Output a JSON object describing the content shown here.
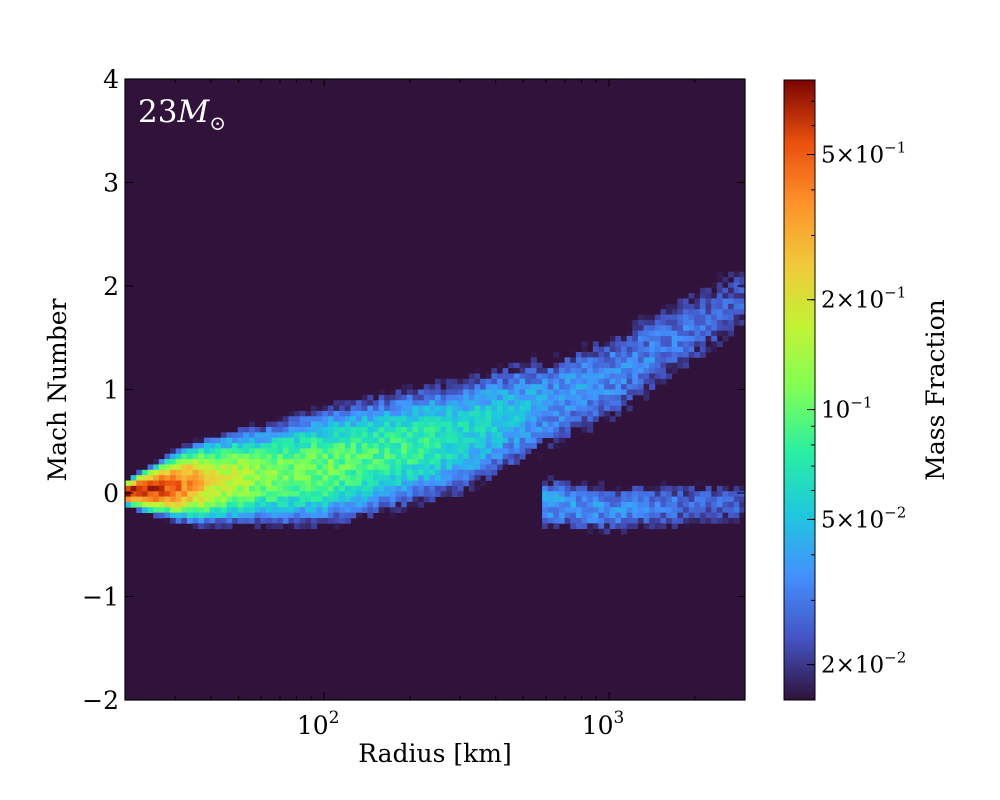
{
  "chart_data": {
    "type": "heatmap",
    "annotation": {
      "number": "23",
      "symbol": "M",
      "subscript": "⊙"
    },
    "xlabel": "Radius [km]",
    "ylabel": "Mach Number",
    "xscale": "log",
    "xlim": [
      20,
      3000
    ],
    "ylim": [
      -2,
      4
    ],
    "x_ticks": [
      {
        "value": 100,
        "base": "10",
        "exp": "2"
      },
      {
        "value": 1000,
        "base": "10",
        "exp": "3"
      }
    ],
    "y_ticks": [
      {
        "value": -2,
        "label": "−2"
      },
      {
        "value": -1,
        "label": "−1"
      },
      {
        "value": 0,
        "label": "0"
      },
      {
        "value": 1,
        "label": "1"
      },
      {
        "value": 2,
        "label": "2"
      },
      {
        "value": 3,
        "label": "3"
      },
      {
        "value": 4,
        "label": "4"
      }
    ],
    "colorbar": {
      "label": "Mass Fraction",
      "scale": "log",
      "range": [
        0.016,
        0.8
      ],
      "colormap": "turbo",
      "ticks": [
        {
          "value": 0.02,
          "mant": "2",
          "exp": "−2"
        },
        {
          "value": 0.05,
          "mant": "5",
          "exp": "−2"
        },
        {
          "value": 0.1,
          "mant": "",
          "exp": "−1"
        },
        {
          "value": 0.2,
          "mant": "2",
          "exp": "−1"
        },
        {
          "value": 0.5,
          "mant": "5",
          "exp": "−1"
        }
      ]
    },
    "background_color": "#30123b",
    "distribution": {
      "ridges": [
        {
          "branch": "upper",
          "points": [
            [
              20,
              0.0
            ],
            [
              50,
              0.15
            ],
            [
              100,
              0.25
            ],
            [
              300,
              0.55
            ],
            [
              1000,
              1.1
            ],
            [
              3000,
              1.9
            ]
          ]
        },
        {
          "branch": "lower",
          "points": [
            [
              600,
              -0.1
            ],
            [
              1000,
              -0.15
            ],
            [
              3000,
              -0.1
            ]
          ]
        }
      ],
      "half_width": [
        [
          20,
          0.08
        ],
        [
          40,
          0.35
        ],
        [
          100,
          0.55
        ],
        [
          300,
          0.6
        ],
        [
          1000,
          0.6
        ],
        [
          3000,
          0.55
        ]
      ],
      "peak_value": [
        [
          20,
          0.8
        ],
        [
          30,
          0.5
        ],
        [
          40,
          0.2
        ],
        [
          60,
          0.12
        ],
        [
          200,
          0.08
        ],
        [
          600,
          0.04
        ],
        [
          1000,
          0.035
        ],
        [
          3000,
          0.025
        ]
      ]
    }
  }
}
